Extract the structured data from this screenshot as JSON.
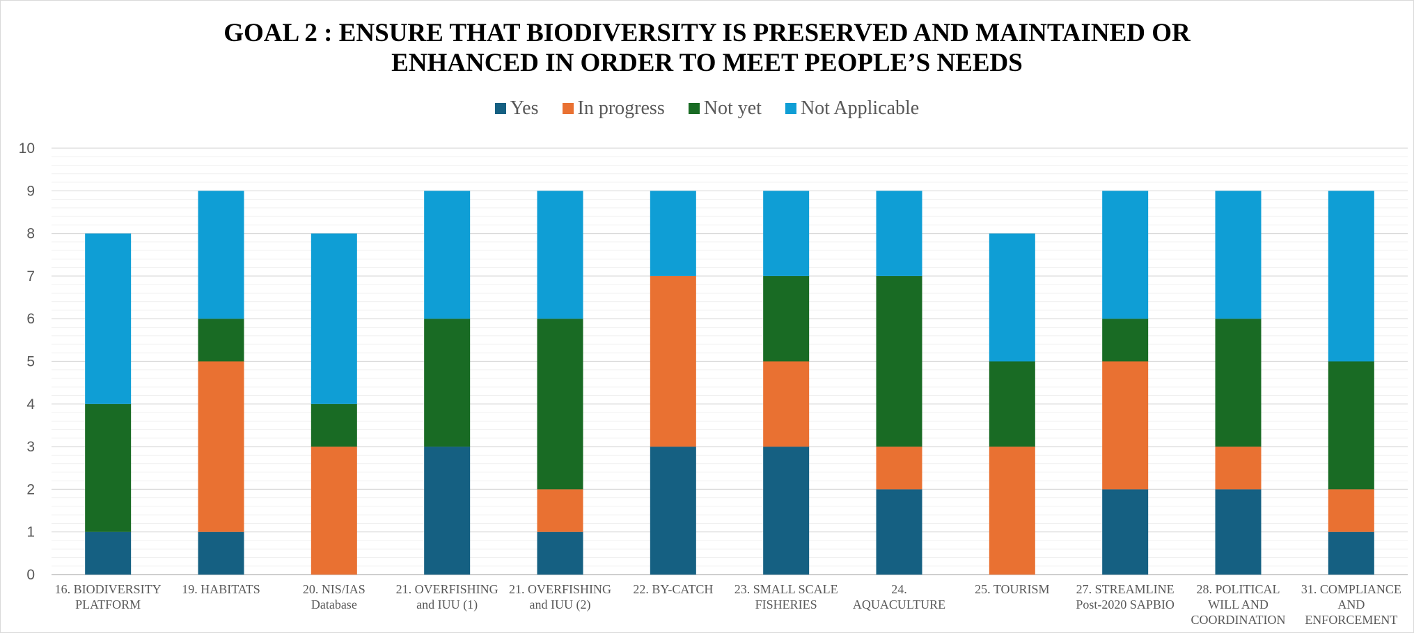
{
  "chart_data": {
    "type": "bar",
    "stacked": true,
    "title": [
      "GOAL 2 : ENSURE THAT BIODIVERSITY IS PRESERVED AND MAINTAINED OR",
      "ENHANCED IN ORDER TO MEET PEOPLE’S NEEDS"
    ],
    "xlabel": "",
    "ylabel": "",
    "ylim": [
      0,
      10
    ],
    "yticks": [
      0,
      1,
      2,
      3,
      4,
      5,
      6,
      7,
      8,
      9,
      10
    ],
    "grid": true,
    "minor_grid": true,
    "legend_position": "top-center",
    "categories": [
      [
        "16. BIODIVERSITY",
        "PLATFORM"
      ],
      [
        "19. HABITATS"
      ],
      [
        "20. NIS/IAS",
        "Database"
      ],
      [
        "21. OVERFISHING",
        "and IUU (1)"
      ],
      [
        "21. OVERFISHING",
        "and IUU (2)"
      ],
      [
        "22. BY-CATCH"
      ],
      [
        "23. SMALL SCALE",
        "FISHERIES"
      ],
      [
        "24.",
        "AQUACULTURE"
      ],
      [
        "25. TOURISM"
      ],
      [
        "27. STREAMLINE",
        "Post-2020 SAPBIO"
      ],
      [
        "28. POLITICAL",
        "WILL AND",
        "COORDINATION"
      ],
      [
        "31. COMPLIANCE",
        "AND",
        "ENFORCEMENT"
      ]
    ],
    "series": [
      {
        "name": "Yes",
        "color": "#156082",
        "values": [
          1,
          1,
          0,
          3,
          1,
          3,
          3,
          2,
          0,
          2,
          2,
          1
        ]
      },
      {
        "name": "In progress",
        "color": "#E97132",
        "values": [
          0,
          4,
          3,
          0,
          1,
          4,
          2,
          1,
          3,
          3,
          1,
          1
        ]
      },
      {
        "name": "Not yet",
        "color": "#196B24",
        "values": [
          3,
          1,
          1,
          3,
          4,
          0,
          2,
          4,
          2,
          1,
          3,
          3
        ]
      },
      {
        "name": "Not Applicable",
        "color": "#0F9ED5",
        "values": [
          4,
          3,
          4,
          3,
          3,
          2,
          2,
          2,
          3,
          3,
          3,
          4
        ]
      }
    ]
  }
}
